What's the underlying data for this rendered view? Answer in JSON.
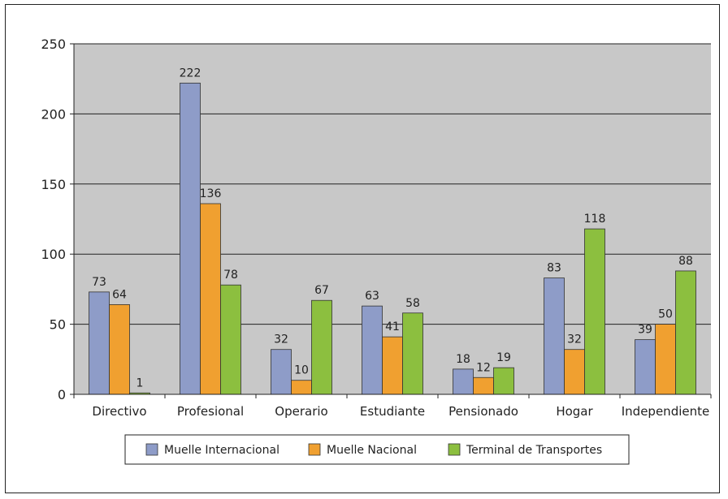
{
  "chart_data": {
    "type": "bar",
    "categories": [
      "Directivo",
      "Profesional",
      "Operario",
      "Estudiante",
      "Pensionado",
      "Hogar",
      "Independiente"
    ],
    "series": [
      {
        "name": "Muelle Internacional",
        "color": "#8e9cc8",
        "values": [
          73,
          222,
          32,
          63,
          18,
          83,
          39
        ]
      },
      {
        "name": "Muelle Nacional",
        "color": "#f0a030",
        "values": [
          64,
          136,
          10,
          41,
          12,
          32,
          50
        ]
      },
      {
        "name": "Terminal de Transportes",
        "color": "#8cbf3f",
        "values": [
          1,
          78,
          67,
          58,
          19,
          118,
          88
        ]
      }
    ],
    "ylim": [
      0,
      250
    ],
    "yticks": [
      0,
      50,
      100,
      150,
      200,
      250
    ],
    "grid": true,
    "legend_position": "bottom",
    "plot_background": "#c8c8c8"
  }
}
